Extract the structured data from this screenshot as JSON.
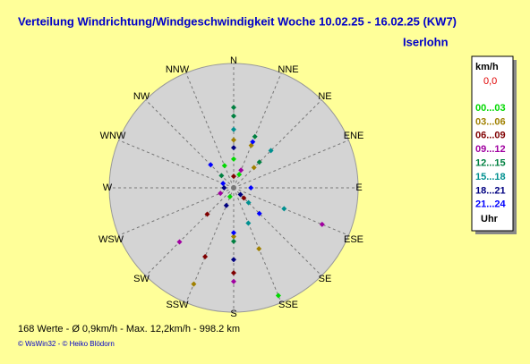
{
  "chart_data": {
    "type": "polar-scatter",
    "title": "Verteilung Windrichtung/Windgeschwindigkeit  Woche 10.02.25 - 16.02.25 (KW7)",
    "subtitle": "Iserlohn",
    "directions": [
      "N",
      "NNE",
      "NE",
      "ENE",
      "E",
      "ESE",
      "SE",
      "SSE",
      "S",
      "SSW",
      "SW",
      "WSW",
      "W",
      "WNW",
      "NW",
      "NNW"
    ],
    "rlim": [
      0,
      13
    ],
    "legend_title": "km/h",
    "legend_calm": "0,0",
    "legend_unit": "Uhr",
    "series": [
      {
        "name": "00...03",
        "color": "#00d800",
        "direction": [
          0,
          22.5,
          157.5,
          337.5,
          202.5
        ],
        "values": [
          3.0,
          1.5,
          12.2,
          2.5,
          1.0
        ]
      },
      {
        "name": "03...06",
        "color": "#a08000",
        "direction": [
          22.5,
          157.5,
          180,
          202.5,
          45,
          0
        ],
        "values": [
          4.8,
          6.9,
          5.1,
          10.9,
          3.0,
          5.0
        ]
      },
      {
        "name": "06...09",
        "color": "#800000",
        "direction": [
          180,
          202.5,
          225,
          135,
          0
        ],
        "values": [
          8.9,
          7.8,
          3.9,
          1.5,
          1.2
        ]
      },
      {
        "name": "09...12",
        "color": "#a000a0",
        "direction": [
          112.5,
          225,
          180,
          247.5,
          22.5
        ],
        "values": [
          10.0,
          8.0,
          9.8,
          1.5,
          2.0
        ]
      },
      {
        "name": "12...15",
        "color": "#008040",
        "direction": [
          0,
          0,
          22.5,
          45,
          180,
          315
        ],
        "values": [
          7.5,
          8.4,
          5.8,
          3.8,
          5.6,
          1.8
        ]
      },
      {
        "name": "15...18",
        "color": "#009090",
        "direction": [
          112.5,
          135,
          157.5,
          45,
          0
        ],
        "values": [
          5.7,
          2.2,
          4.0,
          5.5,
          6.1
        ]
      },
      {
        "name": "18...21",
        "color": "#000080",
        "direction": [
          0,
          180,
          202.5,
          270,
          135
        ],
        "values": [
          4.2,
          7.5,
          2.0,
          1.0,
          1.0
        ]
      },
      {
        "name": "21...24",
        "color": "#0000ff",
        "direction": [
          135,
          22.5,
          315,
          292.5,
          180,
          90
        ],
        "values": [
          3.8,
          5.2,
          3.4,
          1.2,
          4.7,
          1.8
        ]
      }
    ],
    "footer": "168 Werte   -   Ø 0,9km/h  -  Max. 12,2km/h   -   998.2 km",
    "credit": "© WsWin32  -  © Heiko Blödorn"
  }
}
